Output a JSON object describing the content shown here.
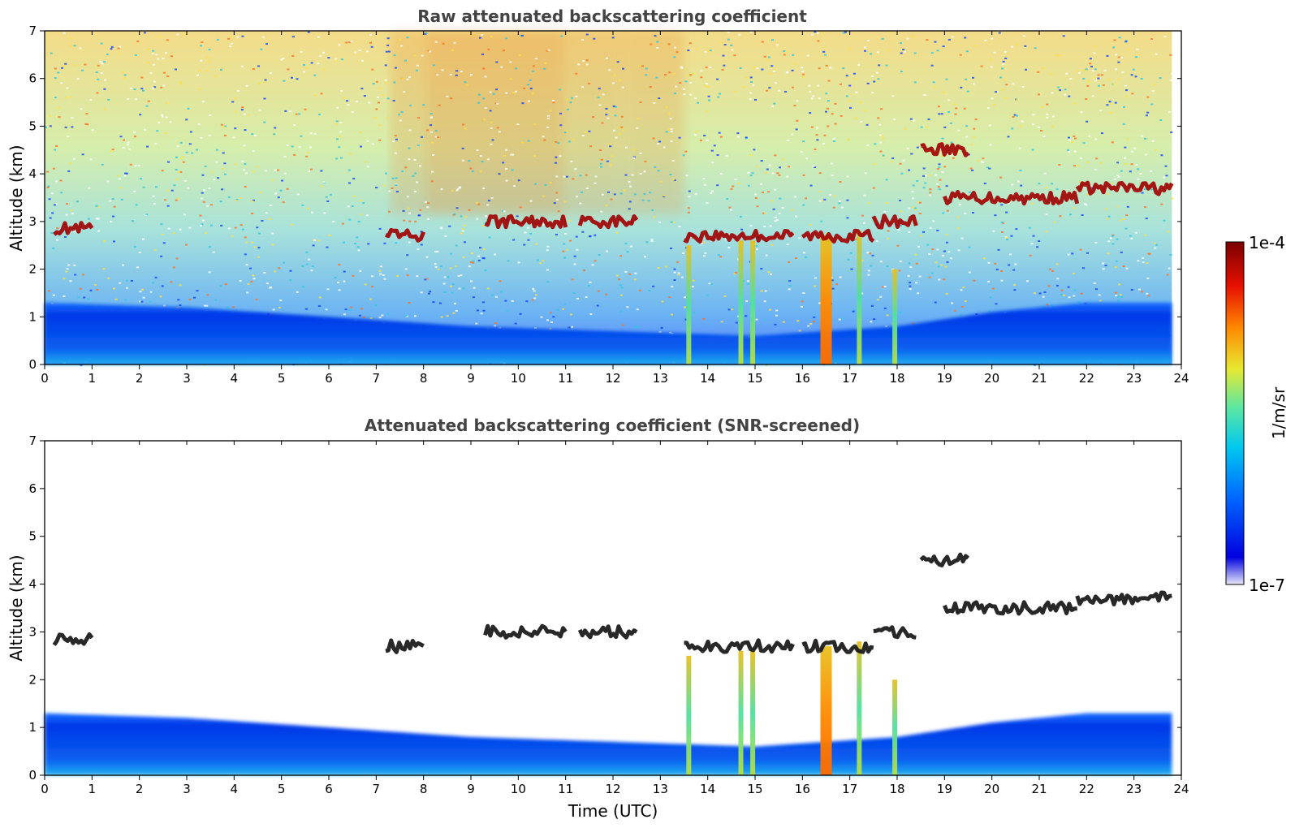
{
  "chart_data": [
    {
      "type": "heatmap",
      "title": "Raw attenuated backscattering coefficient",
      "xlabel": "",
      "ylabel": "Altitude (km)",
      "xlim": [
        0,
        24
      ],
      "ylim": [
        0,
        7
      ],
      "xticks": [
        "0",
        "1",
        "2",
        "3",
        "4",
        "5",
        "6",
        "7",
        "8",
        "9",
        "10",
        "11",
        "12",
        "13",
        "14",
        "15",
        "16",
        "17",
        "18",
        "19",
        "20",
        "21",
        "22",
        "23",
        "24"
      ],
      "yticks": [
        "0",
        "1",
        "2",
        "3",
        "4",
        "5",
        "6",
        "7"
      ],
      "data_end_time": 23.8,
      "noise_present": true,
      "boundary_layer_top_km": [
        [
          0,
          1.3
        ],
        [
          3,
          1.2
        ],
        [
          6,
          1.0
        ],
        [
          9,
          0.8
        ],
        [
          12,
          0.7
        ],
        [
          15,
          0.6
        ],
        [
          18,
          0.8
        ],
        [
          20,
          1.1
        ],
        [
          22,
          1.3
        ],
        [
          23.8,
          1.3
        ]
      ],
      "cloud_layers": [
        {
          "t_start": 0.2,
          "t_end": 1.0,
          "alt_km": 2.85
        },
        {
          "t_start": 7.2,
          "t_end": 8.0,
          "alt_km": 2.7
        },
        {
          "t_start": 9.3,
          "t_end": 11.0,
          "alt_km": 3.0
        },
        {
          "t_start": 11.3,
          "t_end": 12.5,
          "alt_km": 3.0
        },
        {
          "t_start": 13.5,
          "t_end": 15.8,
          "alt_km": 2.7
        },
        {
          "t_start": 16.0,
          "t_end": 17.5,
          "alt_km": 2.7
        },
        {
          "t_start": 17.5,
          "t_end": 18.4,
          "alt_km": 3.0
        },
        {
          "t_start": 19.0,
          "t_end": 21.8,
          "alt_km": 3.5
        },
        {
          "t_start": 21.8,
          "t_end": 23.8,
          "alt_km": 3.7
        },
        {
          "t_start": 18.5,
          "t_end": 19.5,
          "alt_km": 4.5
        }
      ],
      "precipitation_shafts": [
        {
          "t": 13.6,
          "top_km": 2.5
        },
        {
          "t": 14.7,
          "top_km": 2.6
        },
        {
          "t": 14.95,
          "top_km": 2.6
        },
        {
          "t": 16.5,
          "top_km": 2.7
        },
        {
          "t": 17.2,
          "top_km": 2.8
        },
        {
          "t": 17.95,
          "top_km": 2.0
        }
      ]
    },
    {
      "type": "heatmap",
      "title": "Attenuated backscattering coefficient (SNR-screened)",
      "xlabel": "Time (UTC)",
      "ylabel": "Altitude (km)",
      "xlim": [
        0,
        24
      ],
      "ylim": [
        0,
        7
      ],
      "xticks": [
        "0",
        "1",
        "2",
        "3",
        "4",
        "5",
        "6",
        "7",
        "8",
        "9",
        "10",
        "11",
        "12",
        "13",
        "14",
        "15",
        "16",
        "17",
        "18",
        "19",
        "20",
        "21",
        "22",
        "23",
        "24"
      ],
      "yticks": [
        "0",
        "1",
        "2",
        "3",
        "4",
        "5",
        "6",
        "7"
      ],
      "data_end_time": 23.8,
      "noise_present": false
    }
  ],
  "colorbar": {
    "max_label": "1e-4",
    "min_label": "1e-7",
    "unit_label": "1/m/sr",
    "colormap": [
      "#e8e8f8",
      "#0000e0",
      "#0066ff",
      "#00c8f0",
      "#60e8a0",
      "#e8e830",
      "#ff8800",
      "#e81000",
      "#7a0000"
    ]
  }
}
